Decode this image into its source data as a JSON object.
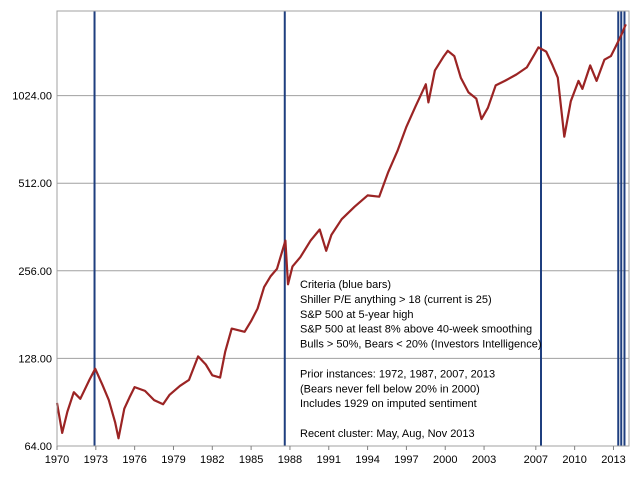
{
  "chart_data": {
    "type": "line",
    "title": "",
    "xlabel": "",
    "ylabel": "",
    "yscale": "log2",
    "ylim": [
      64,
      2000
    ],
    "xlim": [
      1970,
      2014.2
    ],
    "grid": "horizontal",
    "legend": "none",
    "x_ticks": [
      1970,
      1973,
      1976,
      1979,
      1982,
      1985,
      1988,
      1991,
      1994,
      1997,
      2000,
      2003,
      2007,
      2010,
      2013
    ],
    "x_tick_labels": [
      "1970",
      "1973",
      "1976",
      "1979",
      "1982",
      "1985",
      "1988",
      "1991",
      "1994",
      "1997",
      "2000",
      "2003",
      "2007",
      "2010",
      "2013"
    ],
    "y_ticks": [
      64,
      128,
      256,
      512,
      1024
    ],
    "y_tick_labels": [
      "64.00",
      "128.00",
      "256.00",
      "512.00",
      "1024.00"
    ],
    "series": [
      {
        "color": "#9b2424",
        "x": [
          1970.0,
          1970.4,
          1970.8,
          1971.3,
          1971.8,
          1972.5,
          1972.95,
          1973.5,
          1974.0,
          1974.5,
          1974.75,
          1975.2,
          1975.6,
          1976.0,
          1976.8,
          1977.5,
          1978.2,
          1978.7,
          1979.5,
          1980.2,
          1980.9,
          1981.5,
          1982.0,
          1982.6,
          1983.0,
          1983.5,
          1984.5,
          1985.0,
          1985.5,
          1986.0,
          1986.5,
          1987.0,
          1987.65,
          1987.85,
          1988.2,
          1988.8,
          1989.6,
          1990.3,
          1990.8,
          1991.2,
          1992.0,
          1993.0,
          1994.0,
          1994.9,
          1995.6,
          1996.3,
          1997.0,
          1997.7,
          1998.5,
          1998.7,
          1999.2,
          1999.9,
          2000.2,
          2000.7,
          2001.2,
          2001.8,
          2002.4,
          2002.8,
          2003.3,
          2003.9,
          2004.6,
          2005.5,
          2006.3,
          2006.9,
          2007.2,
          2007.8,
          2008.3,
          2008.7,
          2009.2,
          2009.7,
          2010.3,
          2010.6,
          2011.2,
          2011.7,
          2012.3,
          2012.8,
          2013.2,
          2013.6,
          2013.95
        ],
        "values": [
          90,
          71,
          84,
          98,
          93,
          108,
          118,
          104,
          92,
          77,
          68,
          86,
          94,
          102,
          99,
          92,
          89,
          96,
          103,
          108,
          130,
          122,
          112,
          110,
          135,
          162,
          158,
          172,
          190,
          225,
          245,
          260,
          325,
          230,
          265,
          285,
          325,
          355,
          300,
          340,
          385,
          425,
          465,
          460,
          560,
          660,
          800,
          940,
          1120,
          970,
          1250,
          1400,
          1460,
          1400,
          1180,
          1050,
          1000,
          850,
          930,
          1110,
          1150,
          1210,
          1280,
          1420,
          1500,
          1450,
          1300,
          1180,
          740,
          980,
          1150,
          1080,
          1300,
          1150,
          1360,
          1400,
          1520,
          1650,
          1800
        ]
      }
    ],
    "annotation_bars": [
      1972.9,
      1987.6,
      2007.4,
      2013.37,
      2013.6,
      2013.85
    ],
    "annotation_bar_color": "#1f3f7f",
    "annotation_text": [
      "Criteria (blue bars)",
      "Shiller P/E anything > 18  (current is 25)",
      "S&P 500  at 5-year high",
      "S&P 500  at least 8% above 40-week smoothing",
      "Bulls > 50%, Bears < 20% (Investors Intelligence)",
      "",
      "Prior instances: 1972, 1987, 2007, 2013",
      "(Bears never fell below 20% in 2000)",
      "Includes 1929  on imputed sentiment",
      "",
      "Recent cluster: May, Aug, Nov 2013"
    ]
  }
}
